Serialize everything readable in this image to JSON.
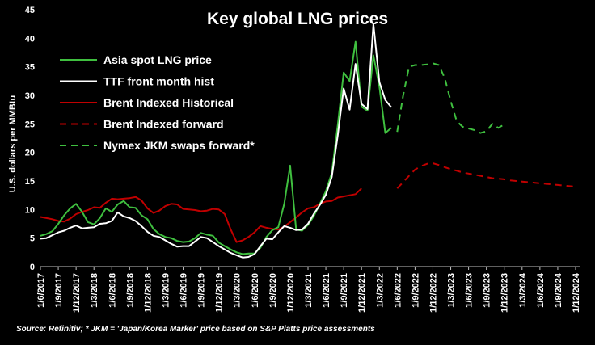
{
  "chart_data": {
    "type": "line",
    "title": "Key global LNG prices",
    "ylabel": "U.S. dollars per MMBtu",
    "xlabel": "",
    "ylim": [
      0,
      45
    ],
    "yticks": [
      0,
      5,
      10,
      15,
      20,
      25,
      30,
      35,
      40,
      45
    ],
    "xlim": [
      "2017-06",
      "2024-12"
    ],
    "xticks": [
      "1/6/2017",
      "1/9/2017",
      "1/12/2017",
      "1/3/2018",
      "1/6/2018",
      "1/9/2018",
      "1/12/2018",
      "1/3/2019",
      "1/6/2019",
      "1/9/2019",
      "1/12/2019",
      "1/3/2020",
      "1/6/2020",
      "1/9/2020",
      "1/12/2020",
      "1/3/2021",
      "1/6/2021",
      "1/9/2021",
      "1/12/2021",
      "1/3/2022",
      "1/6/2022",
      "1/9/2022",
      "1/12/2022",
      "1/3/2023",
      "1/6/2023",
      "1/9/2023",
      "1/12/2023",
      "1/3/2024",
      "1/6/2024",
      "1/9/2024",
      "1/12/2024"
    ],
    "legend_position": "top-left",
    "series": [
      {
        "name": "Asia spot LNG price",
        "color": "#3fbf3f",
        "dash": "solid",
        "start": "2017-06",
        "values": [
          5.4,
          5.7,
          6.2,
          7.5,
          9.0,
          10.2,
          11.0,
          9.6,
          7.8,
          7.4,
          8.5,
          10.2,
          9.6,
          10.9,
          11.5,
          10.4,
          10.3,
          9.0,
          8.3,
          6.6,
          5.7,
          5.2,
          5.0,
          4.5,
          4.3,
          4.4,
          5.0,
          5.9,
          5.6,
          5.4,
          4.2,
          3.6,
          3.0,
          2.5,
          2.2,
          2.3,
          2.3,
          3.3,
          5.2,
          6.4,
          6.9,
          11.0,
          17.7,
          6.5,
          6.3,
          7.3,
          8.9,
          11.0,
          13.2,
          16.4,
          24.8,
          34.0,
          32.5,
          39.4,
          28.0,
          27.3,
          37.0,
          31.5,
          23.4,
          24.3
        ]
      },
      {
        "name": "TTF front month hist",
        "color": "#ffffff",
        "dash": "solid",
        "start": "2017-06",
        "values": [
          4.9,
          5.0,
          5.5,
          6.0,
          6.3,
          6.8,
          7.2,
          6.7,
          6.8,
          6.9,
          7.5,
          7.6,
          8.0,
          9.5,
          8.8,
          8.5,
          8.0,
          7.1,
          6.1,
          5.4,
          5.2,
          4.6,
          4.0,
          3.5,
          3.6,
          3.6,
          4.4,
          5.2,
          5.0,
          4.3,
          3.6,
          3.0,
          2.4,
          2.0,
          1.6,
          1.7,
          2.2,
          3.6,
          4.9,
          4.8,
          6.0,
          7.1,
          6.8,
          6.4,
          6.5,
          7.5,
          9.3,
          10.8,
          12.6,
          15.7,
          23.0,
          31.2,
          27.5,
          35.5,
          28.5,
          27.6,
          42.5,
          32.3,
          29.2,
          27.9
        ]
      },
      {
        "name": "Brent Indexed Historical",
        "color": "#c00000",
        "dash": "solid",
        "start": "2017-06",
        "values": [
          8.7,
          8.5,
          8.3,
          8.0,
          7.9,
          8.4,
          9.2,
          9.6,
          9.9,
          10.4,
          10.3,
          11.2,
          11.9,
          11.8,
          11.9,
          12.0,
          12.2,
          11.6,
          10.2,
          9.4,
          9.8,
          10.6,
          11.0,
          10.9,
          10.1,
          10.0,
          9.9,
          9.7,
          9.8,
          10.1,
          10.0,
          9.2,
          6.5,
          4.3,
          4.6,
          5.2,
          6.0,
          7.1,
          6.8,
          6.6,
          6.5,
          7.0,
          7.8,
          8.6,
          9.5,
          10.2,
          10.4,
          11.0,
          11.4,
          11.5,
          12.1,
          12.3,
          12.5,
          12.7,
          13.7
        ]
      },
      {
        "name": "Brent Indexed forward",
        "color": "#c00000",
        "dash": "dashed",
        "start": "2022-06",
        "values": [
          13.7,
          14.8,
          15.9,
          17.0,
          17.6,
          18.0,
          18.1,
          17.8,
          17.4,
          17.1,
          16.8,
          16.5,
          16.3,
          16.1,
          15.9,
          15.7,
          15.5,
          15.4,
          15.3,
          15.1,
          15.0,
          14.9,
          14.8,
          14.7,
          14.6,
          14.5,
          14.4,
          14.3,
          14.2,
          14.1,
          14.0
        ]
      },
      {
        "name": "Nymex JKM swaps forward*",
        "color": "#3fbf3f",
        "dash": "dashed",
        "start": "2022-06",
        "values": [
          23.6,
          30.0,
          35.0,
          35.3,
          35.3,
          35.4,
          35.6,
          35.3,
          33.0,
          29.0,
          25.5,
          24.5,
          24.2,
          23.9,
          23.4,
          23.7,
          25.0,
          24.3,
          24.9
        ]
      }
    ],
    "source": "Source: Refinitiv; * JKM = 'Japan/Korea Marker' price based on S&P Platts price assessments"
  }
}
